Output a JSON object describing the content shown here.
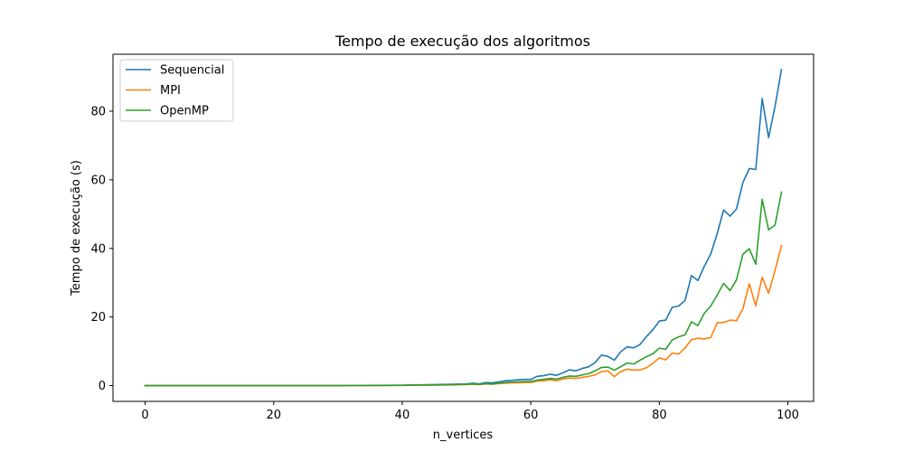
{
  "chart_data": {
    "type": "line",
    "title": "Tempo de execução dos algoritmos",
    "xlabel": "n_vertices",
    "ylabel": "Tempo de execução (s)",
    "xlim": [
      -5,
      104
    ],
    "ylim": [
      -4.6,
      96.6
    ],
    "xticks": [
      0,
      20,
      40,
      60,
      80,
      100
    ],
    "yticks": [
      0,
      20,
      40,
      60,
      80
    ],
    "grid": false,
    "legend_position": "upper-left",
    "series": [
      {
        "name": "Sequencial",
        "color": "#1f77b4",
        "x": [
          0,
          5,
          10,
          15,
          20,
          25,
          30,
          35,
          40,
          42,
          45,
          48,
          50,
          51,
          52,
          53,
          54,
          55,
          56,
          57,
          58,
          59,
          60,
          61,
          62,
          63,
          64,
          65,
          66,
          67,
          68,
          69,
          70,
          71,
          72,
          73,
          74,
          75,
          76,
          77,
          78,
          79,
          80,
          81,
          82,
          83,
          84,
          85,
          86,
          87,
          88,
          89,
          90,
          91,
          92,
          93,
          94,
          95,
          96,
          97,
          98,
          99
        ],
        "y": [
          0,
          0,
          0,
          0,
          0,
          0,
          0,
          0.05,
          0.1,
          0.2,
          0.3,
          0.4,
          0.5,
          0.7,
          0.5,
          0.9,
          0.8,
          1.1,
          1.4,
          1.5,
          1.7,
          1.8,
          1.8,
          2.7,
          2.9,
          3.3,
          3.0,
          3.7,
          4.6,
          4.3,
          5.0,
          5.5,
          6.7,
          8.9,
          8.5,
          7.4,
          9.9,
          11.3,
          11.0,
          12.0,
          14.3,
          16.3,
          18.8,
          19.1,
          22.8,
          23.2,
          24.8,
          32.1,
          30.6,
          34.8,
          38.4,
          44.3,
          51.2,
          49.4,
          51.5,
          59.2,
          63.3,
          63.0,
          83.7,
          72.3,
          81.4,
          92.1
        ]
      },
      {
        "name": "MPI",
        "color": "#ff7f0e",
        "x": [
          0,
          5,
          10,
          15,
          20,
          25,
          30,
          35,
          40,
          42,
          45,
          48,
          50,
          51,
          52,
          53,
          54,
          55,
          56,
          57,
          58,
          59,
          60,
          61,
          62,
          63,
          64,
          65,
          66,
          67,
          68,
          69,
          70,
          71,
          72,
          73,
          74,
          75,
          76,
          77,
          78,
          79,
          80,
          81,
          82,
          83,
          84,
          85,
          86,
          87,
          88,
          89,
          90,
          91,
          92,
          93,
          94,
          95,
          96,
          97,
          98,
          99
        ],
        "y": [
          0,
          0,
          0,
          0,
          0,
          0,
          0,
          0,
          0.05,
          0.1,
          0.15,
          0.2,
          0.3,
          0.4,
          0.3,
          0.5,
          0.4,
          0.6,
          0.7,
          0.8,
          0.8,
          0.9,
          0.9,
          1.3,
          1.4,
          1.7,
          1.4,
          1.9,
          2.2,
          2.1,
          2.4,
          2.7,
          3.1,
          4.1,
          4.3,
          2.6,
          4.1,
          4.8,
          4.5,
          4.6,
          5.2,
          6.5,
          8.1,
          7.5,
          9.5,
          9.2,
          11.0,
          13.4,
          13.8,
          13.6,
          14.0,
          18.3,
          18.4,
          19.1,
          18.9,
          22.4,
          29.7,
          23.2,
          31.6,
          26.9,
          33.6,
          40.8
        ]
      },
      {
        "name": "OpenMP",
        "color": "#2ca02c",
        "x": [
          0,
          5,
          10,
          15,
          20,
          25,
          30,
          35,
          40,
          42,
          45,
          48,
          50,
          51,
          52,
          53,
          54,
          55,
          56,
          57,
          58,
          59,
          60,
          61,
          62,
          63,
          64,
          65,
          66,
          67,
          68,
          69,
          70,
          71,
          72,
          73,
          74,
          75,
          76,
          77,
          78,
          79,
          80,
          81,
          82,
          83,
          84,
          85,
          86,
          87,
          88,
          89,
          90,
          91,
          92,
          93,
          94,
          95,
          96,
          97,
          98,
          99
        ],
        "y": [
          0,
          0,
          0,
          0,
          0,
          0,
          0,
          0.05,
          0.1,
          0.15,
          0.2,
          0.3,
          0.4,
          0.5,
          0.4,
          0.6,
          0.5,
          0.7,
          0.9,
          1.0,
          1.1,
          1.2,
          1.2,
          1.6,
          1.8,
          2.1,
          1.9,
          2.4,
          2.8,
          2.7,
          3.1,
          3.5,
          4.3,
          5.3,
          5.4,
          4.5,
          5.5,
          6.6,
          6.3,
          7.4,
          8.4,
          9.3,
          10.9,
          10.6,
          13.3,
          14.2,
          14.8,
          18.6,
          17.5,
          21.1,
          23.2,
          26.4,
          29.8,
          27.7,
          30.8,
          38.3,
          39.9,
          35.4,
          54.3,
          45.4,
          46.8,
          56.4
        ]
      }
    ]
  }
}
